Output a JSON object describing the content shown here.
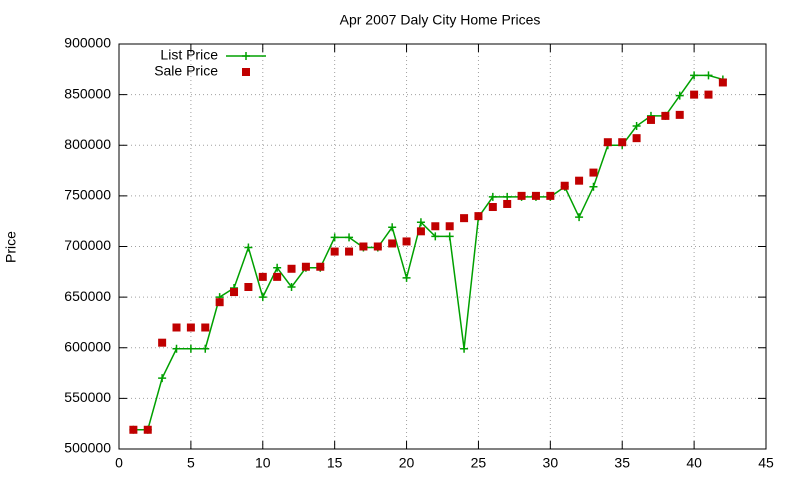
{
  "chart_data": {
    "type": "line",
    "title": "Apr 2007 Daly City Home Prices",
    "y_label": "Price",
    "x": [
      1,
      2,
      3,
      4,
      5,
      6,
      7,
      8,
      9,
      10,
      11,
      12,
      13,
      14,
      15,
      16,
      17,
      18,
      19,
      20,
      21,
      22,
      23,
      24,
      25,
      26,
      27,
      28,
      29,
      30,
      31,
      32,
      33,
      34,
      35,
      36,
      37,
      38,
      39,
      40,
      41,
      42
    ],
    "series": [
      {
        "name": "List Price",
        "color": "#00a000",
        "style": "linespoints",
        "values": [
          519000,
          519000,
          570000,
          599000,
          599000,
          599000,
          650000,
          659000,
          699000,
          650000,
          679000,
          660000,
          679000,
          679000,
          709000,
          709000,
          699000,
          699000,
          719000,
          669000,
          724000,
          710000,
          710000,
          599000,
          729000,
          749000,
          749000,
          749000,
          749000,
          749000,
          759000,
          729000,
          759000,
          800000,
          800000,
          819000,
          829000,
          829000,
          849000,
          869000,
          869000,
          865000
        ]
      },
      {
        "name": "Sale Price",
        "color": "#c00000",
        "style": "points",
        "values": [
          519000,
          519000,
          605000,
          620000,
          620000,
          620000,
          645000,
          655000,
          660000,
          670000,
          670000,
          678000,
          680000,
          680000,
          695000,
          695000,
          700000,
          700000,
          703000,
          705000,
          715000,
          720000,
          720000,
          728000,
          730000,
          739000,
          742000,
          750000,
          750000,
          750000,
          760000,
          765000,
          773000,
          803000,
          803000,
          807000,
          825000,
          829000,
          830000,
          850000,
          850000,
          862000
        ]
      }
    ],
    "xlim": [
      0,
      45
    ],
    "xticks": [
      0,
      5,
      10,
      15,
      20,
      25,
      30,
      35,
      40,
      45
    ],
    "ylim": [
      500000,
      900000
    ],
    "yticks": [
      500000,
      550000,
      600000,
      650000,
      700000,
      750000,
      800000,
      850000,
      900000
    ],
    "grid": true,
    "legend": "top-left"
  }
}
